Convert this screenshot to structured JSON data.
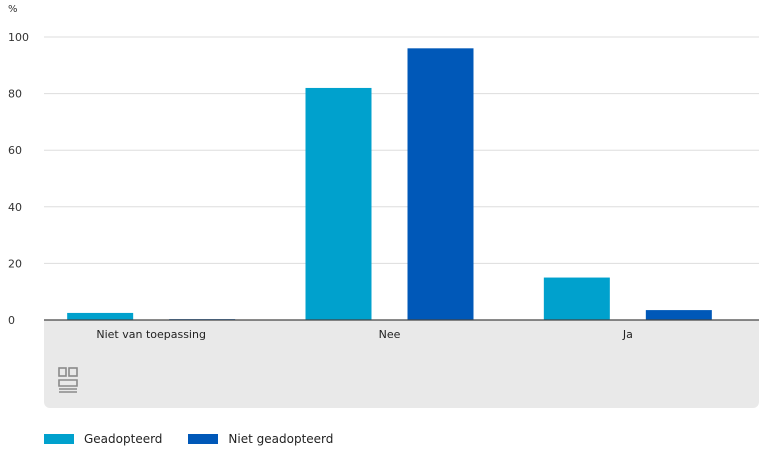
{
  "chart_data": {
    "type": "bar",
    "ylabel": "%",
    "ylim": [
      0,
      100
    ],
    "yticks": [
      0,
      20,
      40,
      60,
      80,
      100
    ],
    "grid": true,
    "categories": [
      "Niet van toepassing",
      "Nee",
      "Ja"
    ],
    "series": [
      {
        "name": "Geadopteerd",
        "color": "#00a1cd",
        "values": [
          2.5,
          82,
          15
        ]
      },
      {
        "name": "Niet geadopteerd",
        "color": "#0058b8",
        "values": [
          0.3,
          96,
          3.5
        ]
      }
    ],
    "legend_position": "bottom-left"
  },
  "colors": {
    "grid": "#dddddd",
    "axis": "#444444",
    "footer": "#e9e9e9"
  },
  "logo_icon": "cbs-logo-icon"
}
